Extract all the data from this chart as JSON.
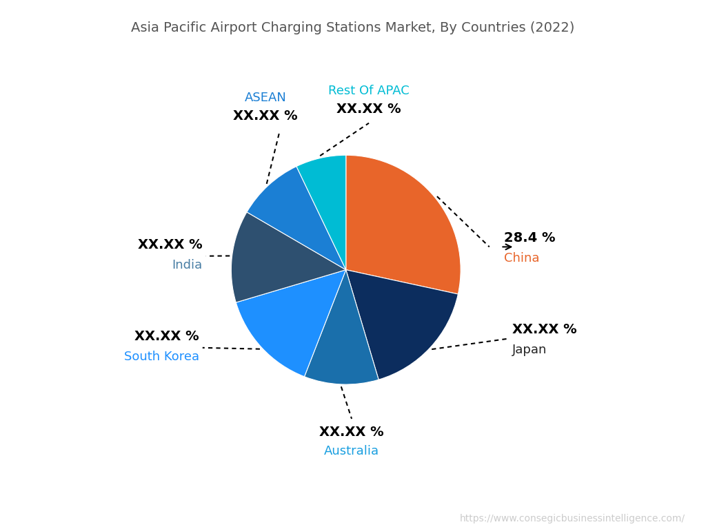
{
  "title": "Asia Pacific Airport Charging Stations Market, By Countries (2022)",
  "watermark": "https://www.consegicbusinessintelligence.com/",
  "slices": [
    {
      "label": "China",
      "pct_display": "28.4 %",
      "value": 28.4,
      "color": "#E8652A",
      "label_color": "#E8652A"
    },
    {
      "label": "Japan",
      "pct_display": "XX.XX %",
      "value": 17.0,
      "color": "#0C2D5E",
      "label_color": "#222222"
    },
    {
      "label": "Australia",
      "pct_display": "XX.XX %",
      "value": 10.5,
      "color": "#1A6FAB",
      "label_color": "#1A9FE0"
    },
    {
      "label": "South Korea",
      "pct_display": "XX.XX %",
      "value": 14.5,
      "color": "#1E90FF",
      "label_color": "#1E90FF"
    },
    {
      "label": "India",
      "pct_display": "XX.XX %",
      "value": 13.0,
      "color": "#2E5070",
      "label_color": "#4A7FA5"
    },
    {
      "label": "ASEAN",
      "pct_display": "XX.XX %",
      "value": 9.5,
      "color": "#1B7FD4",
      "label_color": "#1B7FD4"
    },
    {
      "label": "Rest Of APAC",
      "pct_display": "XX.XX %",
      "value": 7.1,
      "color": "#00BCD4",
      "label_color": "#00BCD4"
    }
  ],
  "title_fontsize": 14,
  "title_color": "#555555",
  "watermark_color": "#cccccc",
  "watermark_fontsize": 10,
  "background_color": "#ffffff",
  "pct_fontsize": 14,
  "name_fontsize": 13
}
